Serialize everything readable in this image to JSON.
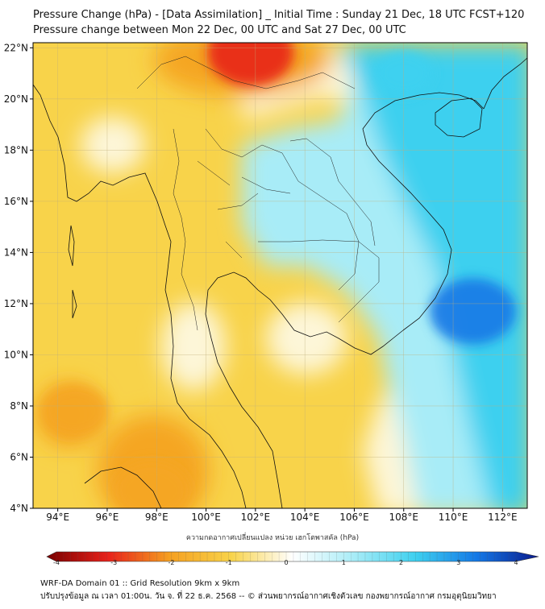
{
  "header": {
    "title_line1": "Pressure Change (hPa) - [Data Assimilation] _ Initial Time : Sunday 21 Dec, 18 UTC FCST+120",
    "title_line2": "Pressure change between Mon 22 Dec, 00 UTC and Sat 27 Dec, 00 UTC"
  },
  "map": {
    "lon_range": [
      93,
      113
    ],
    "lat_range": [
      4,
      22.2
    ],
    "lon_ticks": [
      {
        "value": 94,
        "label": "94°E"
      },
      {
        "value": 96,
        "label": "96°E"
      },
      {
        "value": 98,
        "label": "98°E"
      },
      {
        "value": 100,
        "label": "100°E"
      },
      {
        "value": 102,
        "label": "102°E"
      },
      {
        "value": 104,
        "label": "104°E"
      },
      {
        "value": 106,
        "label": "106°E"
      },
      {
        "value": 108,
        "label": "108°E"
      },
      {
        "value": 110,
        "label": "110°E"
      },
      {
        "value": 112,
        "label": "112°E"
      }
    ],
    "lat_ticks": [
      {
        "value": 4,
        "label": "4°N"
      },
      {
        "value": 6,
        "label": "6°N"
      },
      {
        "value": 8,
        "label": "8°N"
      },
      {
        "value": 10,
        "label": "10°N"
      },
      {
        "value": 12,
        "label": "12°N"
      },
      {
        "value": 14,
        "label": "14°N"
      },
      {
        "value": 16,
        "label": "16°N"
      },
      {
        "value": 18,
        "label": "18°N"
      },
      {
        "value": 20,
        "label": "20°N"
      },
      {
        "value": 22,
        "label": "22°N"
      }
    ],
    "grid": true,
    "field_colors": {
      "background": "#f8d34a",
      "orange": "#f5a623",
      "red": "#e8211a",
      "cream": "#fdf6d8",
      "light_cyan": "#a8ecf7",
      "cyan": "#3ed0ef",
      "blue": "#1478e6"
    },
    "features": [
      {
        "name": "pressure-drop-north",
        "lon": 101.8,
        "lat": 21.8,
        "value": -3
      },
      {
        "name": "pressure-drop-south",
        "lon": 97.8,
        "lat": 4.7,
        "value": -2.5
      },
      {
        "name": "pressure-drop-west",
        "lon": 94.7,
        "lat": 7.8,
        "value": -2
      },
      {
        "name": "pressure-rise-east",
        "lon": 110.8,
        "lat": 11.7,
        "value": 3
      },
      {
        "name": "pressure-rise-northeast",
        "lon": 108,
        "lat": 21,
        "value": 1.5
      }
    ]
  },
  "colorbar": {
    "label": "ความกดอากาศเปลี่ยนแปลง หน่วย เฮกโตพาสคัล (hPa)",
    "min": -4,
    "max": 4,
    "ticks": [
      {
        "value": -4,
        "label": "-4"
      },
      {
        "value": -3,
        "label": "-3"
      },
      {
        "value": -2,
        "label": "-2"
      },
      {
        "value": -1,
        "label": "-1"
      },
      {
        "value": 0,
        "label": "0"
      },
      {
        "value": 1,
        "label": "1"
      },
      {
        "value": 2,
        "label": "2"
      },
      {
        "value": 3,
        "label": "3"
      },
      {
        "value": 4,
        "label": "4"
      }
    ],
    "stops": [
      {
        "value": -4,
        "color": "#7a0000"
      },
      {
        "value": -3,
        "color": "#e8211a"
      },
      {
        "value": -2,
        "color": "#f5a020"
      },
      {
        "value": -1,
        "color": "#f8d34a"
      },
      {
        "value": 0,
        "color": "#ffffff"
      },
      {
        "value": 1,
        "color": "#a8ecf7"
      },
      {
        "value": 2,
        "color": "#3ed0ef"
      },
      {
        "value": 3,
        "color": "#1478e6"
      },
      {
        "value": 4,
        "color": "#0a1a8c"
      }
    ]
  },
  "footer": {
    "line1": "WRF-DA Domain 01 :: Grid Resolution 9km x 9km",
    "line2": "ปรับปรุงข้อมูล ณ เวลา 01:00น. วัน จ. ที่ 22 ธ.ค. 2568 -- © ส่วนพยากรณ์อากาศเชิงตัวเลข กองพยากรณ์อากาศ กรมอุตุนิยมวิทยา"
  }
}
